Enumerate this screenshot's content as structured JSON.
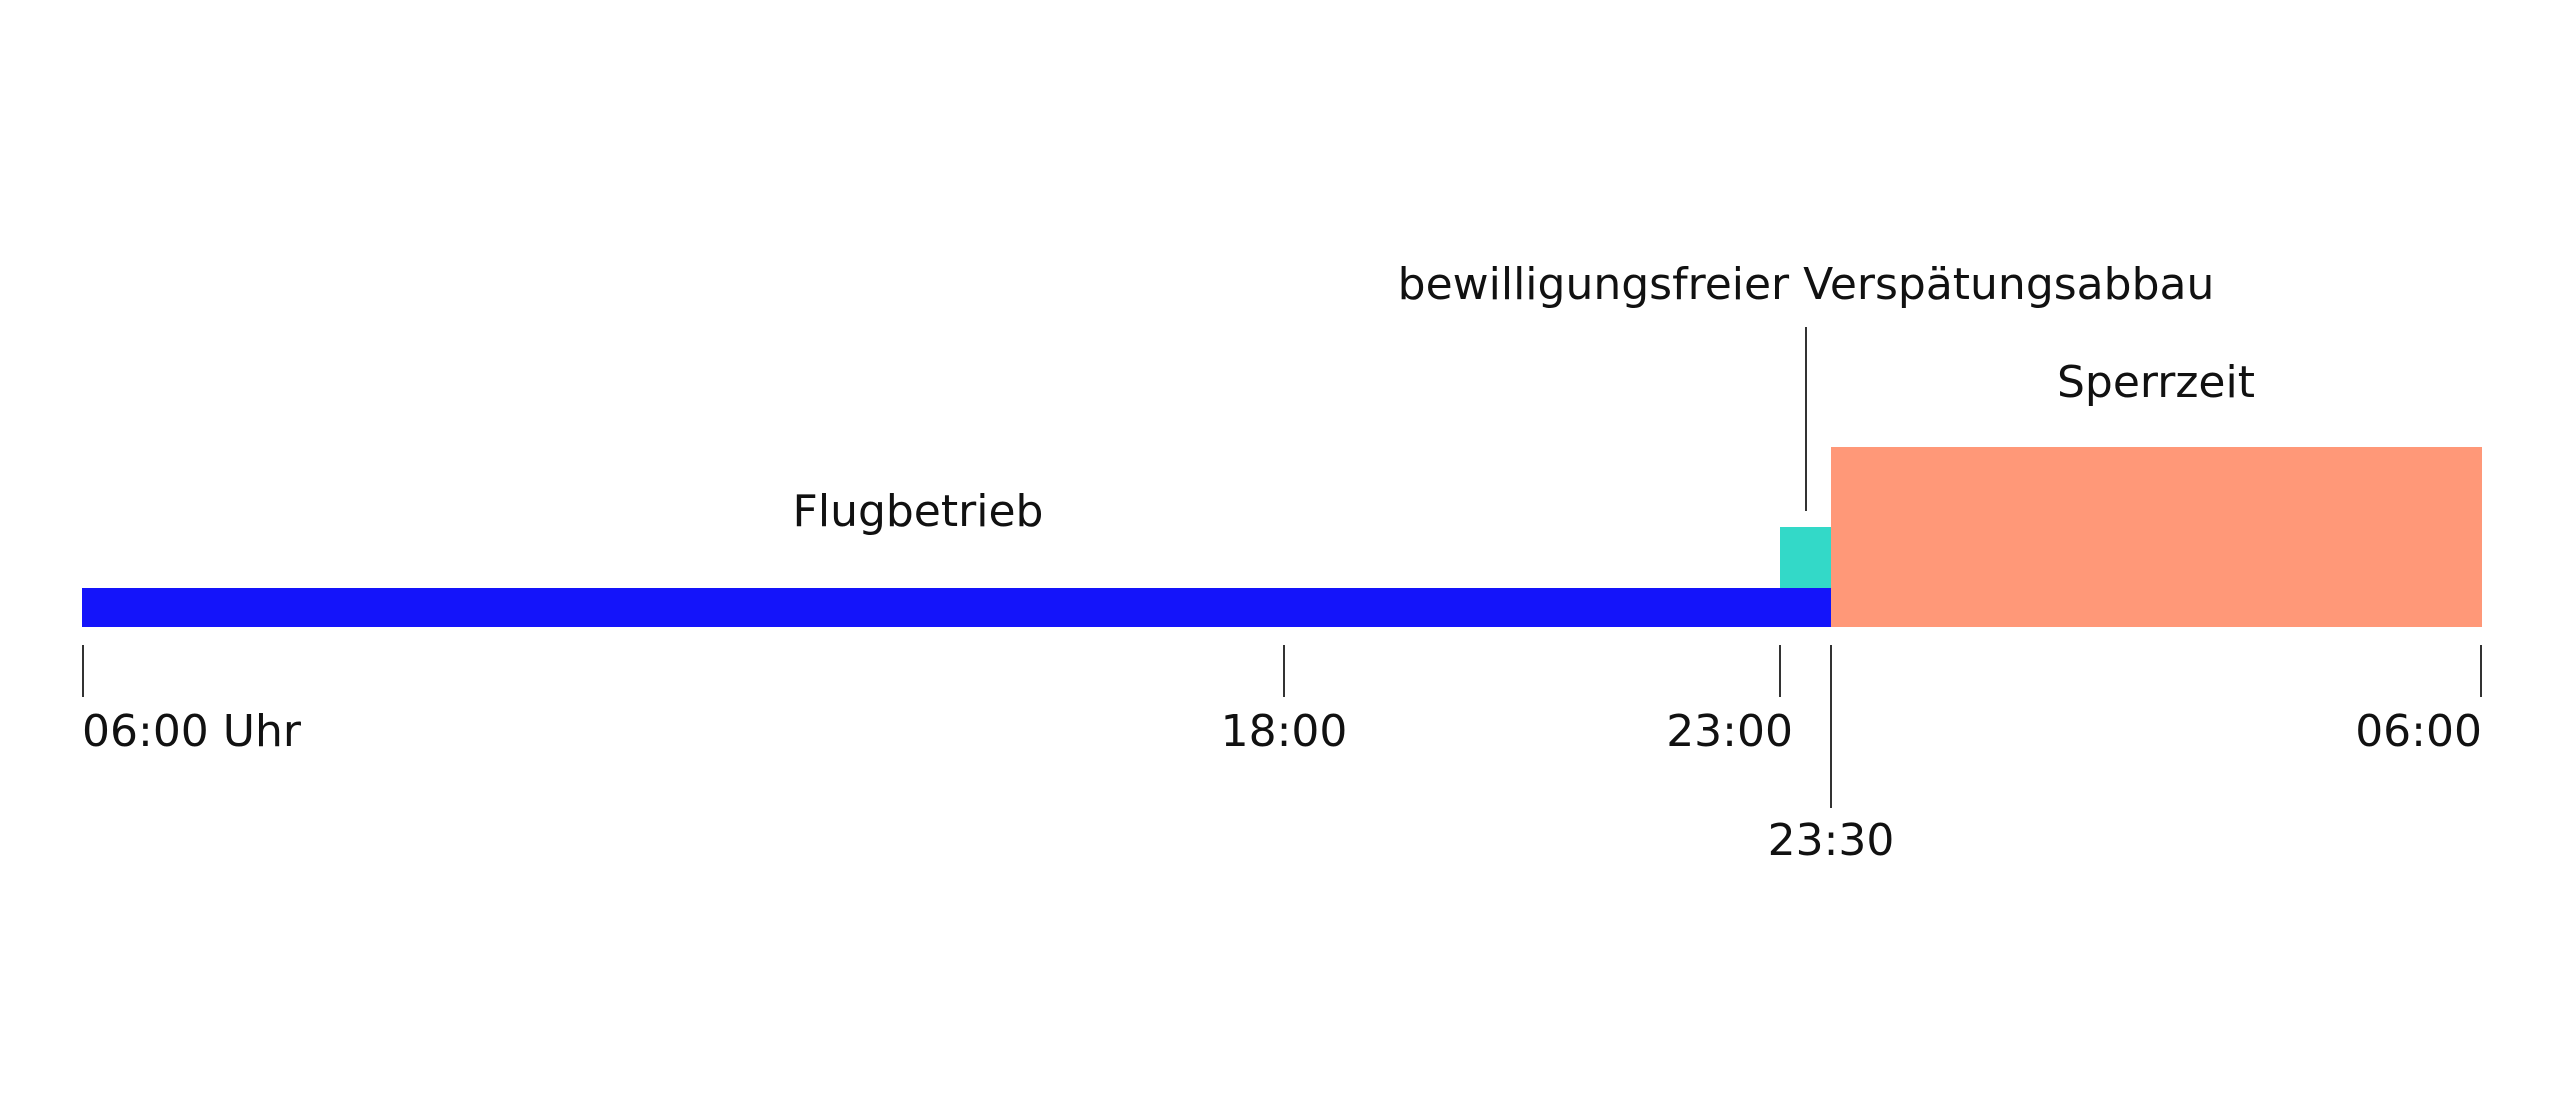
{
  "segments": {
    "operation": "Flugbetrieb",
    "delay_reduction": "bewilligungsfreier Verspätungsabbau",
    "curfew": "Sperrzeit"
  },
  "ticks": [
    "06:00 Uhr",
    "18:00",
    "23:00",
    "23:30",
    "06:00"
  ]
}
